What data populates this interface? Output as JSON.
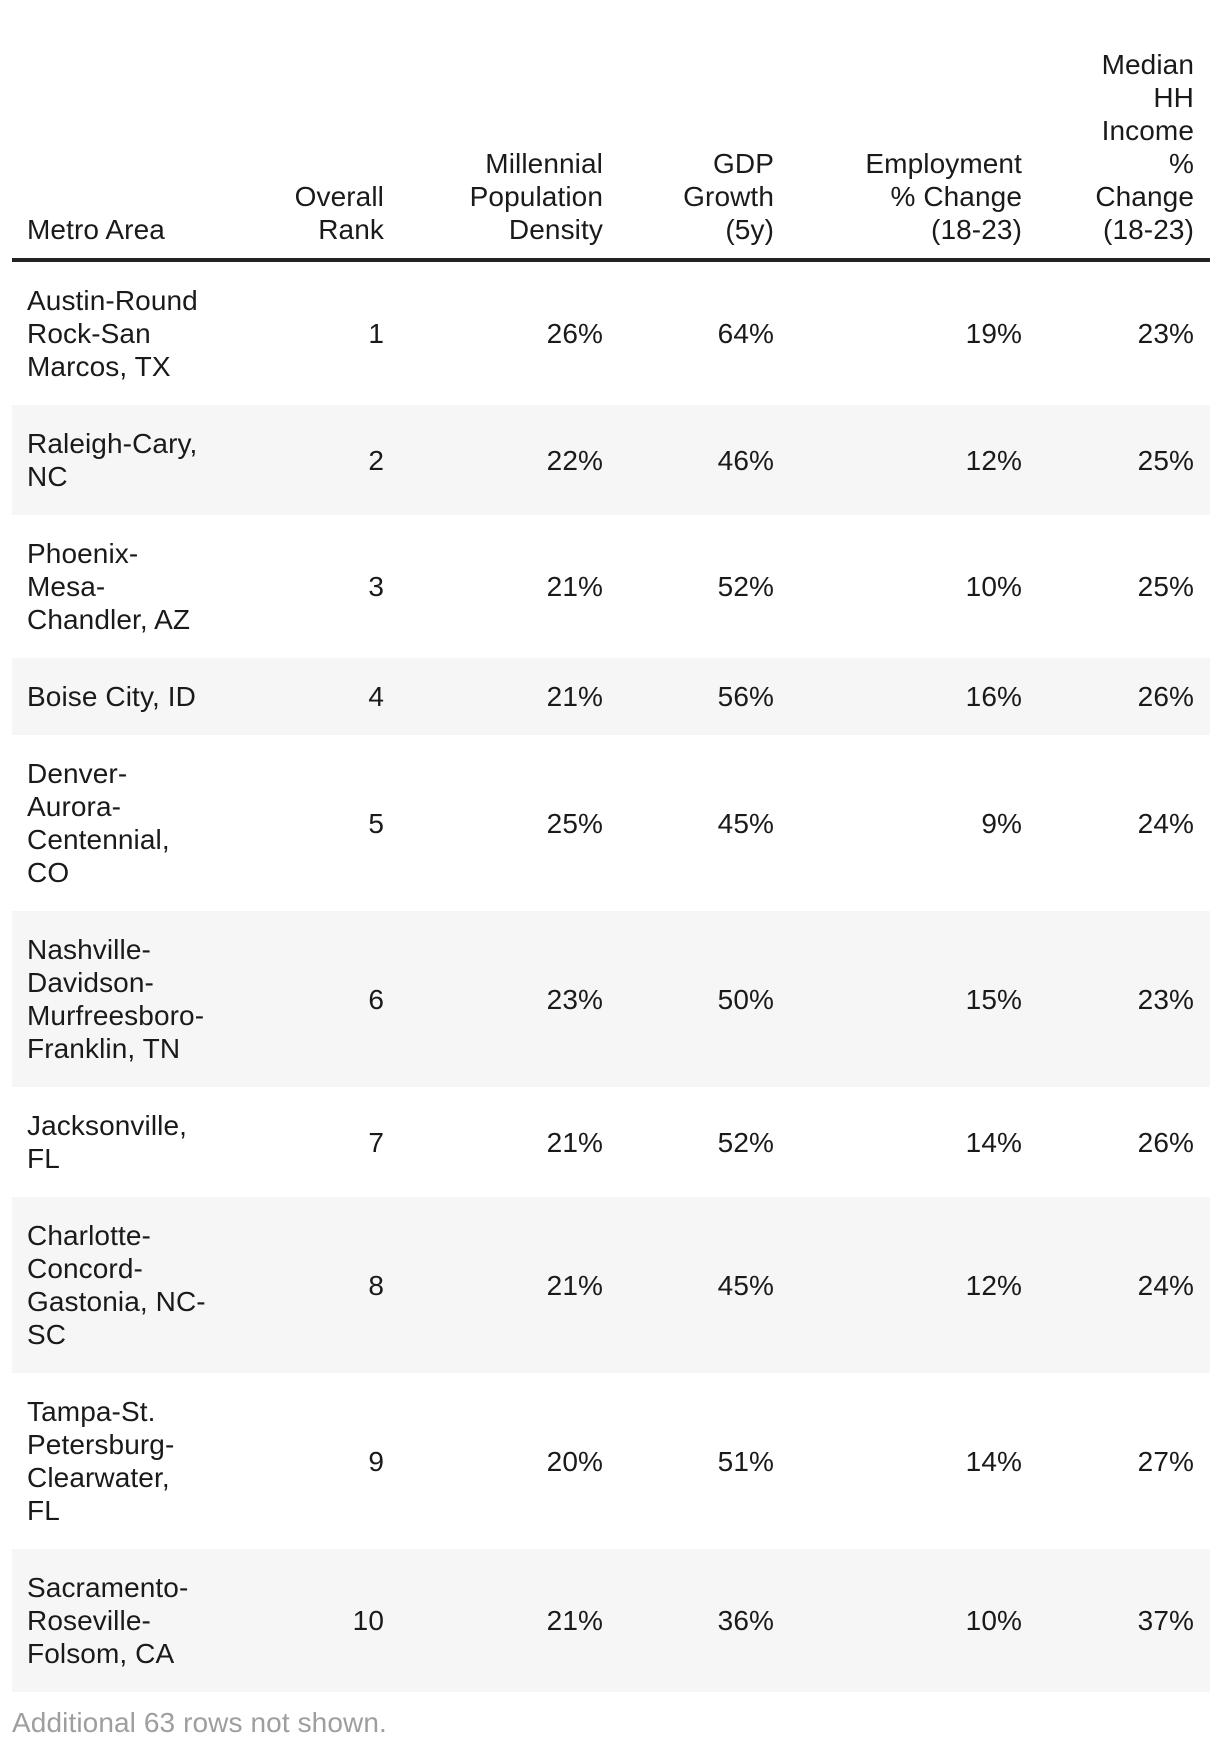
{
  "table": {
    "columns": [
      {
        "label": "Metro Area"
      },
      {
        "label": "Overall\nRank"
      },
      {
        "label": "Millennial\nPopulation\nDensity"
      },
      {
        "label": "GDP\nGrowth\n(5y)"
      },
      {
        "label": "Employment\n% Change\n(18-23)"
      },
      {
        "label": "Median\nHH\nIncome\n%\nChange\n(18-23)"
      }
    ],
    "row_keys": [
      "metro",
      "overall_rank",
      "millennial_density",
      "gdp_growth",
      "employment_change",
      "income_change"
    ],
    "rows": [
      {
        "metro": "Austin-Round\nRock-San\nMarcos, TX",
        "overall_rank": "1",
        "millennial_density": "26%",
        "gdp_growth": "64%",
        "employment_change": "19%",
        "income_change": "23%"
      },
      {
        "metro": "Raleigh-Cary,\nNC",
        "overall_rank": "2",
        "millennial_density": "22%",
        "gdp_growth": "46%",
        "employment_change": "12%",
        "income_change": "25%"
      },
      {
        "metro": "Phoenix-\nMesa-\nChandler, AZ",
        "overall_rank": "3",
        "millennial_density": "21%",
        "gdp_growth": "52%",
        "employment_change": "10%",
        "income_change": "25%"
      },
      {
        "metro": "Boise City, ID",
        "overall_rank": "4",
        "millennial_density": "21%",
        "gdp_growth": "56%",
        "employment_change": "16%",
        "income_change": "26%"
      },
      {
        "metro": "Denver-\nAurora-\nCentennial,\nCO",
        "overall_rank": "5",
        "millennial_density": "25%",
        "gdp_growth": "45%",
        "employment_change": "9%",
        "income_change": "24%"
      },
      {
        "metro": "Nashville-\nDavidson-\nMurfreesboro-\nFranklin, TN",
        "overall_rank": "6",
        "millennial_density": "23%",
        "gdp_growth": "50%",
        "employment_change": "15%",
        "income_change": "23%"
      },
      {
        "metro": "Jacksonville,\nFL",
        "overall_rank": "7",
        "millennial_density": "21%",
        "gdp_growth": "52%",
        "employment_change": "14%",
        "income_change": "26%"
      },
      {
        "metro": "Charlotte-\nConcord-\nGastonia, NC-\nSC",
        "overall_rank": "8",
        "millennial_density": "21%",
        "gdp_growth": "45%",
        "employment_change": "12%",
        "income_change": "24%"
      },
      {
        "metro": "Tampa-St.\nPetersburg-\nClearwater, FL",
        "overall_rank": "9",
        "millennial_density": "20%",
        "gdp_growth": "51%",
        "employment_change": "14%",
        "income_change": "27%"
      },
      {
        "metro": "Sacramento-\nRoseville-\nFolsom, CA",
        "overall_rank": "10",
        "millennial_density": "21%",
        "gdp_growth": "36%",
        "employment_change": "10%",
        "income_change": "37%"
      }
    ]
  },
  "footer": {
    "note": "Additional 63 rows not shown."
  },
  "colors": {
    "text": "#1a1a1a",
    "row_alt_background": "#f6f6f6",
    "header_border": "#232323",
    "footer_text": "#9e9e9e"
  },
  "chart_data": {
    "type": "table",
    "title": "",
    "columns": [
      "Metro Area",
      "Overall Rank",
      "Millennial Population Density",
      "GDP Growth (5y)",
      "Employment % Change (18-23)",
      "Median HH Income % Change (18-23)"
    ],
    "rows": [
      [
        "Austin-Round Rock-San Marcos, TX",
        1,
        "26%",
        "64%",
        "19%",
        "23%"
      ],
      [
        "Raleigh-Cary, NC",
        2,
        "22%",
        "46%",
        "12%",
        "25%"
      ],
      [
        "Phoenix-Mesa-Chandler, AZ",
        3,
        "21%",
        "52%",
        "10%",
        "25%"
      ],
      [
        "Boise City, ID",
        4,
        "21%",
        "56%",
        "16%",
        "26%"
      ],
      [
        "Denver-Aurora-Centennial, CO",
        5,
        "25%",
        "45%",
        "9%",
        "24%"
      ],
      [
        "Nashville-Davidson-Murfreesboro-Franklin, TN",
        6,
        "23%",
        "50%",
        "15%",
        "23%"
      ],
      [
        "Jacksonville, FL",
        7,
        "21%",
        "52%",
        "14%",
        "26%"
      ],
      [
        "Charlotte-Concord-Gastonia, NC-SC",
        8,
        "21%",
        "45%",
        "12%",
        "24%"
      ],
      [
        "Tampa-St. Petersburg-Clearwater, FL",
        9,
        "20%",
        "51%",
        "14%",
        "27%"
      ],
      [
        "Sacramento-Roseville-Folsom, CA",
        10,
        "21%",
        "36%",
        "10%",
        "37%"
      ]
    ],
    "layout": {
      "grid": false,
      "row_striping": "alternate",
      "numeric_columns_align": "right"
    },
    "note": "Additional 63 rows not shown."
  }
}
